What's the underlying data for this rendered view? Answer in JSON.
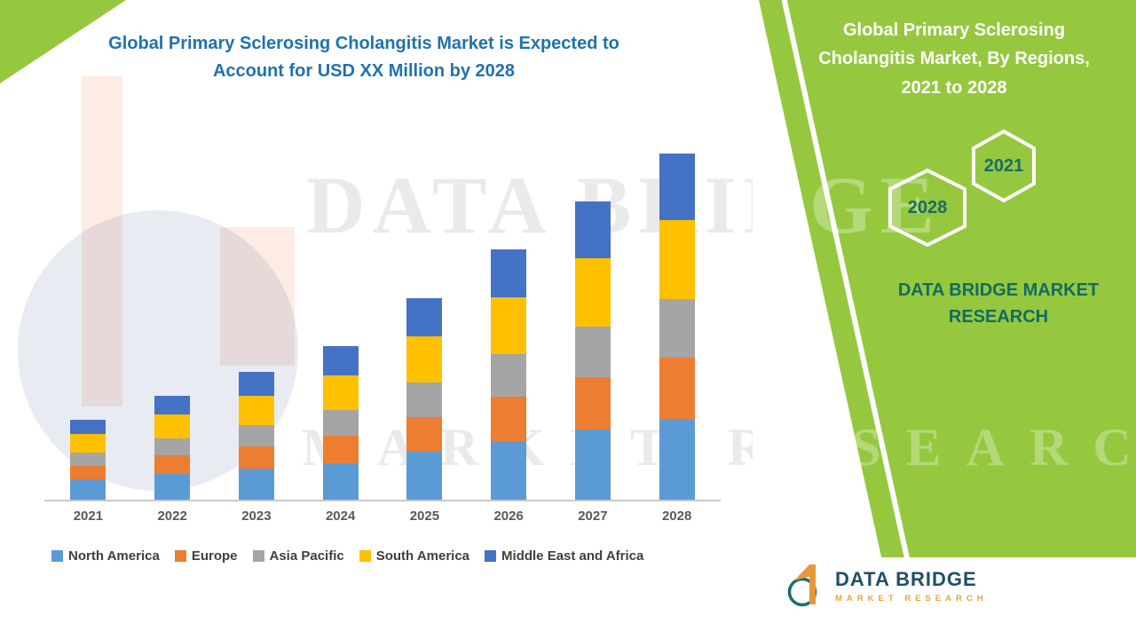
{
  "header": {
    "title_line1": "Global Primary Sclerosing Cholangitis Market is Expected to",
    "title_line2": "Account for USD XX Million by 2028",
    "title_color": "#1E73AE"
  },
  "side_panel": {
    "title_line1": "Global Primary Sclerosing",
    "title_line2": "Cholangitis Market, By Regions,",
    "title_line3": "2021 to 2028",
    "hex_year_top": "2021",
    "hex_year_bottom": "2028",
    "brand_line1": "DATA BRIDGE MARKET",
    "brand_line2": "RESEARCH",
    "accent_green": "#95C83E",
    "teal_text": "#1A6B68"
  },
  "watermark": {
    "line1": "DATA BRIDGE",
    "line2": "MARKET RESEARCH"
  },
  "logo": {
    "name": "DATA BRIDGE",
    "subtitle": "MARKET RESEARCH"
  },
  "chart_data": {
    "type": "bar",
    "stacked": true,
    "title": "Global Primary Sclerosing Cholangitis Market is Expected to Account for USD XX Million by 2028",
    "categories": [
      "2021",
      "2022",
      "2023",
      "2024",
      "2025",
      "2026",
      "2027",
      "2028"
    ],
    "series": [
      {
        "name": "North America",
        "color": "#5B9BD5",
        "values": [
          22,
          28,
          34,
          40,
          52,
          64,
          76,
          88
        ]
      },
      {
        "name": "Europe",
        "color": "#ED7D31",
        "values": [
          15,
          20,
          24,
          29,
          38,
          48,
          57,
          66
        ]
      },
      {
        "name": "Asia Pacific",
        "color": "#A5A5A5",
        "values": [
          14,
          18,
          23,
          28,
          37,
          46,
          55,
          64
        ]
      },
      {
        "name": "South America",
        "color": "#FFC000",
        "values": [
          20,
          26,
          32,
          38,
          50,
          62,
          74,
          86
        ]
      },
      {
        "name": "Middle East and Africa",
        "color": "#4472C4",
        "values": [
          16,
          21,
          26,
          32,
          42,
          52,
          62,
          72
        ]
      }
    ],
    "ylim": [
      0,
      400
    ],
    "y_axis_visible": false,
    "grid": false,
    "legend_position": "bottom",
    "note": "Values estimated from bar heights; chart shows no numeric y-axis (USD XX Million)."
  }
}
